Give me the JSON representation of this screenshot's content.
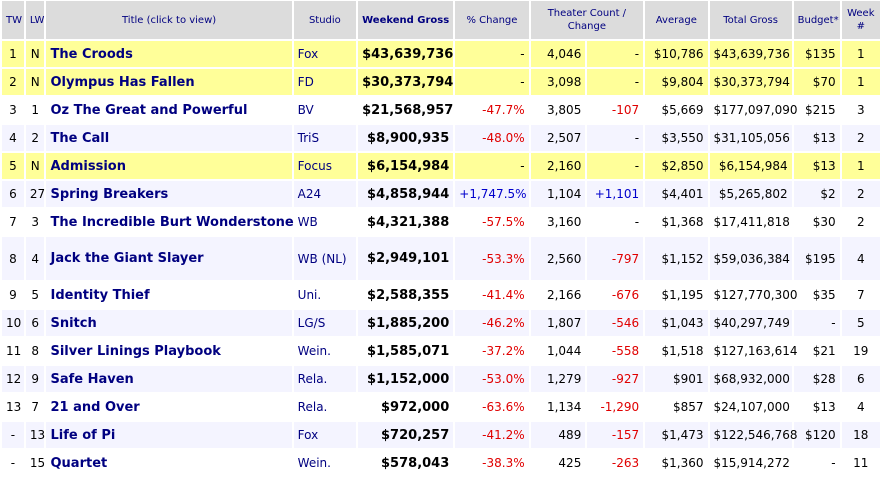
{
  "headers": {
    "tw": "TW",
    "lw": "LW",
    "title": "Title (click to view)",
    "studio": "Studio",
    "weekend": "Weekend Gross",
    "pct": "% Change",
    "theaters": "Theater Count / Change",
    "average": "Average",
    "total": "Total Gross",
    "budget": "Budget*",
    "week": "Week #"
  },
  "colors": {
    "new_release_row": "#ffff99",
    "header": "#dcdcdc",
    "link": "#000080",
    "negative": "#e00000",
    "positive": "#0000cc"
  },
  "rows": [
    {
      "tw": "1",
      "lw": "N",
      "title": "The Croods",
      "studio": "Fox",
      "weekend": "$43,639,736",
      "pct": "-",
      "theaters": "4,046",
      "tchange": "-",
      "average": "$10,786",
      "total": "$43,639,736",
      "budget": "$135",
      "week": "1",
      "new": true
    },
    {
      "tw": "2",
      "lw": "N",
      "title": "Olympus Has Fallen",
      "studio": "FD",
      "weekend": "$30,373,794",
      "pct": "-",
      "theaters": "3,098",
      "tchange": "-",
      "average": "$9,804",
      "total": "$30,373,794",
      "budget": "$70",
      "week": "1",
      "new": true
    },
    {
      "tw": "3",
      "lw": "1",
      "title": "Oz The Great and Powerful",
      "studio": "BV",
      "weekend": "$21,568,957",
      "pct": "-47.7%",
      "theaters": "3,805",
      "tchange": "-107",
      "average": "$5,669",
      "total": "$177,097,090",
      "budget": "$215",
      "week": "3"
    },
    {
      "tw": "4",
      "lw": "2",
      "title": "The Call",
      "studio": "TriS",
      "weekend": "$8,900,935",
      "pct": "-48.0%",
      "theaters": "2,507",
      "tchange": "-",
      "average": "$3,550",
      "total": "$31,105,056",
      "budget": "$13",
      "week": "2"
    },
    {
      "tw": "5",
      "lw": "N",
      "title": "Admission",
      "studio": "Focus",
      "weekend": "$6,154,984",
      "pct": "-",
      "theaters": "2,160",
      "tchange": "-",
      "average": "$2,850",
      "total": "$6,154,984",
      "budget": "$13",
      "week": "1",
      "new": true
    },
    {
      "tw": "6",
      "lw": "27",
      "title": "Spring Breakers",
      "studio": "A24",
      "weekend": "$4,858,944",
      "pct": "+1,747.5%",
      "theaters": "1,104",
      "tchange": "+1,101",
      "average": "$4,401",
      "total": "$5,265,802",
      "budget": "$2",
      "week": "2"
    },
    {
      "tw": "7",
      "lw": "3",
      "title": "The Incredible Burt Wonderstone",
      "studio": "WB",
      "weekend": "$4,321,388",
      "pct": "-57.5%",
      "theaters": "3,160",
      "tchange": "-",
      "average": "$1,368",
      "total": "$17,411,818",
      "budget": "$30",
      "week": "2"
    },
    {
      "tw": "8",
      "lw": "4",
      "title": "Jack the Giant Slayer",
      "studio": "WB (NL)",
      "weekend": "$2,949,101",
      "pct": "-53.3%",
      "theaters": "2,560",
      "tchange": "-797",
      "average": "$1,152",
      "total": "$59,036,384",
      "budget": "$195",
      "week": "4"
    },
    {
      "tw": "9",
      "lw": "5",
      "title": "Identity Thief",
      "studio": "Uni.",
      "weekend": "$2,588,355",
      "pct": "-41.4%",
      "theaters": "2,166",
      "tchange": "-676",
      "average": "$1,195",
      "total": "$127,770,300",
      "budget": "$35",
      "week": "7"
    },
    {
      "tw": "10",
      "lw": "6",
      "title": "Snitch",
      "studio": "LG/S",
      "weekend": "$1,885,200",
      "pct": "-46.2%",
      "theaters": "1,807",
      "tchange": "-546",
      "average": "$1,043",
      "total": "$40,297,749",
      "budget": "-",
      "week": "5"
    },
    {
      "tw": "11",
      "lw": "8",
      "title": "Silver Linings Playbook",
      "studio": "Wein.",
      "weekend": "$1,585,071",
      "pct": "-37.2%",
      "theaters": "1,044",
      "tchange": "-558",
      "average": "$1,518",
      "total": "$127,163,614",
      "budget": "$21",
      "week": "19"
    },
    {
      "tw": "12",
      "lw": "9",
      "title": "Safe Haven",
      "studio": "Rela.",
      "weekend": "$1,152,000",
      "pct": "-53.0%",
      "theaters": "1,279",
      "tchange": "-927",
      "average": "$901",
      "total": "$68,932,000",
      "budget": "$28",
      "week": "6"
    },
    {
      "tw": "13",
      "lw": "7",
      "title": "21 and Over",
      "studio": "Rela.",
      "weekend": "$972,000",
      "pct": "-63.6%",
      "theaters": "1,134",
      "tchange": "-1,290",
      "average": "$857",
      "total": "$24,107,000",
      "budget": "$13",
      "week": "4"
    },
    {
      "tw": "-",
      "lw": "13",
      "title": "Life of Pi",
      "studio": "Fox",
      "weekend": "$720,257",
      "pct": "-41.2%",
      "theaters": "489",
      "tchange": "-157",
      "average": "$1,473",
      "total": "$122,546,768",
      "budget": "$120",
      "week": "18"
    },
    {
      "tw": "-",
      "lw": "15",
      "title": "Quartet",
      "studio": "Wein.",
      "weekend": "$578,043",
      "pct": "-38.3%",
      "theaters": "425",
      "tchange": "-263",
      "average": "$1,360",
      "total": "$15,914,272",
      "budget": "-",
      "week": "11"
    }
  ]
}
